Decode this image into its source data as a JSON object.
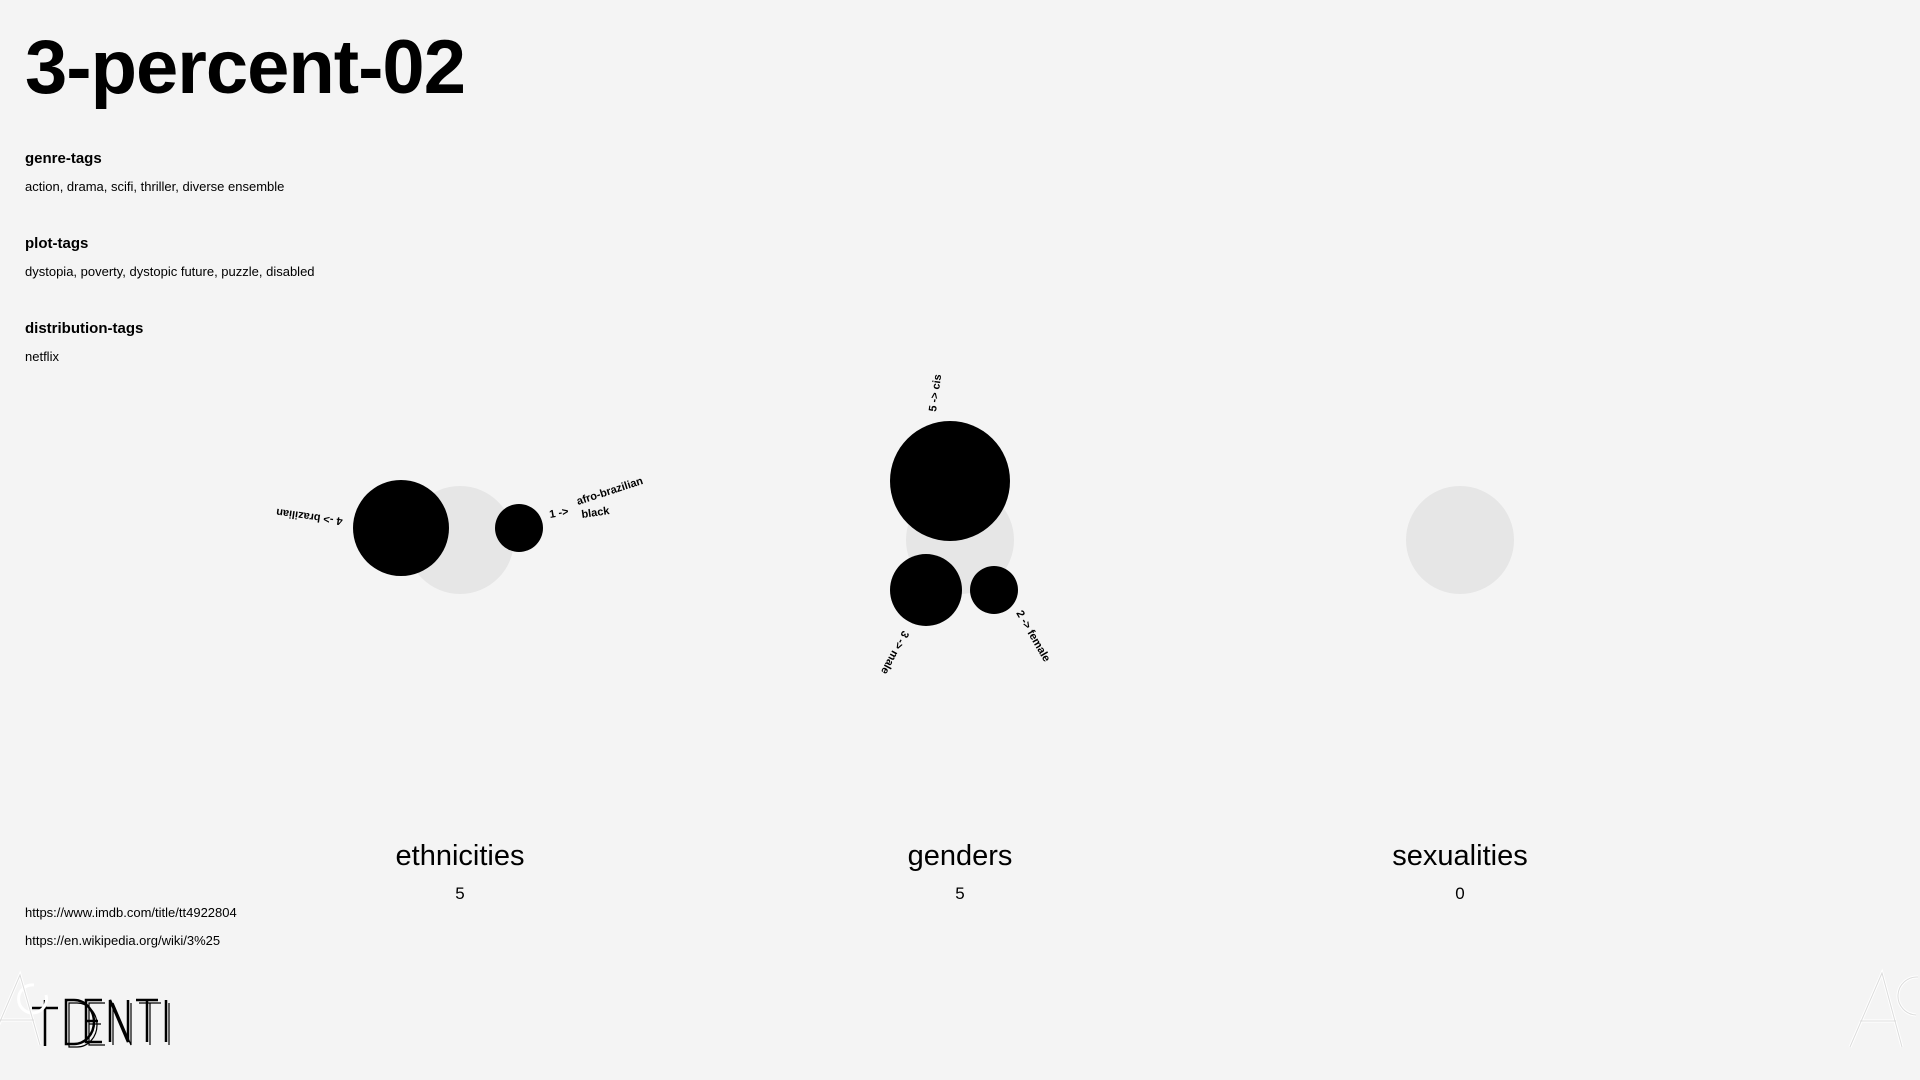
{
  "page": {
    "title": "3-percent-02"
  },
  "tags": {
    "genre": {
      "heading": "genre-tags",
      "values": "action, drama, scifi, thriller, diverse ensemble"
    },
    "plot": {
      "heading": "plot-tags",
      "values": "dystopia, poverty, dystopic future, puzzle, disabled"
    },
    "distribution": {
      "heading": "distribution-tags",
      "values": "netflix"
    }
  },
  "categories": {
    "ethnicities": {
      "label": "ethnicities",
      "count": "5",
      "items": [
        {
          "count": 4,
          "name": "brazilian",
          "text": "4 -> brazilian"
        },
        {
          "count": 1,
          "name": "afro-brazilian black",
          "text_line1": "1 ->",
          "text_line2": "afro-brazilian",
          "text_line3": "black"
        }
      ]
    },
    "genders": {
      "label": "genders",
      "count": "5",
      "items": [
        {
          "count": 5,
          "name": "cis",
          "text": "5 -> cis"
        },
        {
          "count": 3,
          "name": "male",
          "text": "3 -> male"
        },
        {
          "count": 2,
          "name": "female",
          "text": "2 -> female"
        }
      ]
    },
    "sexualities": {
      "label": "sexualities",
      "count": "0",
      "items": []
    }
  },
  "links": {
    "imdb": "https://www.imdb.com/title/tt4922804",
    "wikipedia": "https://en.wikipedia.org/wiki/3%25"
  },
  "colors": {
    "background": "#f4f4f4",
    "bubble": "#000000",
    "ghost": "#e6e6e6"
  }
}
